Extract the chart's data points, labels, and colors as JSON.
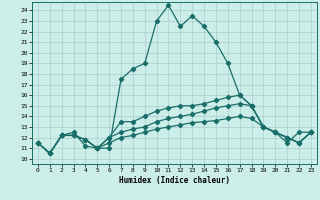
{
  "xlabel": "Humidex (Indice chaleur)",
  "background_color": "#cceee8",
  "grid_color": "#aacccc",
  "line_color": "#1a6e6a",
  "xlim": [
    -0.5,
    23.5
  ],
  "ylim": [
    9.5,
    24.8
  ],
  "xticks": [
    0,
    1,
    2,
    3,
    4,
    5,
    6,
    7,
    8,
    9,
    10,
    11,
    12,
    13,
    14,
    15,
    16,
    17,
    18,
    19,
    20,
    21,
    22,
    23
  ],
  "yticks": [
    10,
    11,
    12,
    13,
    14,
    15,
    16,
    17,
    18,
    19,
    20,
    21,
    22,
    23,
    24
  ],
  "lines": [
    {
      "x": [
        0,
        1,
        2,
        3,
        4,
        5,
        6,
        7,
        8,
        9,
        10,
        11,
        12,
        13,
        14,
        15,
        16,
        17,
        18,
        19,
        20,
        21,
        22,
        23
      ],
      "y": [
        11.5,
        10.5,
        12.2,
        12.5,
        11.2,
        11.0,
        11.0,
        17.5,
        18.5,
        19.0,
        23.0,
        24.5,
        22.5,
        23.5,
        22.5,
        21.0,
        19.0,
        16.0,
        15.0,
        13.0,
        12.5,
        11.5,
        12.5,
        12.5
      ]
    },
    {
      "x": [
        0,
        1,
        2,
        3,
        4,
        5,
        6,
        7,
        8,
        9,
        10,
        11,
        12,
        13,
        14,
        15,
        16,
        17,
        18,
        19,
        20,
        21,
        22,
        23
      ],
      "y": [
        11.5,
        10.5,
        12.2,
        12.2,
        11.8,
        11.0,
        12.0,
        13.5,
        13.5,
        14.0,
        14.5,
        14.8,
        15.0,
        15.0,
        15.2,
        15.5,
        15.8,
        16.0,
        15.0,
        13.0,
        12.5,
        12.0,
        11.5,
        12.5
      ]
    },
    {
      "x": [
        0,
        1,
        2,
        3,
        4,
        5,
        6,
        7,
        8,
        9,
        10,
        11,
        12,
        13,
        14,
        15,
        16,
        17,
        18,
        19,
        20,
        21,
        22,
        23
      ],
      "y": [
        11.5,
        10.5,
        12.2,
        12.2,
        11.8,
        11.0,
        12.0,
        12.5,
        12.8,
        13.0,
        13.5,
        13.8,
        14.0,
        14.2,
        14.5,
        14.8,
        15.0,
        15.2,
        15.0,
        13.0,
        12.5,
        12.0,
        11.5,
        12.5
      ]
    },
    {
      "x": [
        0,
        1,
        2,
        3,
        4,
        5,
        6,
        7,
        8,
        9,
        10,
        11,
        12,
        13,
        14,
        15,
        16,
        17,
        18,
        19,
        20,
        21,
        22,
        23
      ],
      "y": [
        11.5,
        10.5,
        12.2,
        12.2,
        11.8,
        11.0,
        11.5,
        12.0,
        12.2,
        12.5,
        12.8,
        13.0,
        13.2,
        13.4,
        13.5,
        13.6,
        13.8,
        14.0,
        13.8,
        13.0,
        12.5,
        12.0,
        11.5,
        12.5
      ]
    }
  ]
}
